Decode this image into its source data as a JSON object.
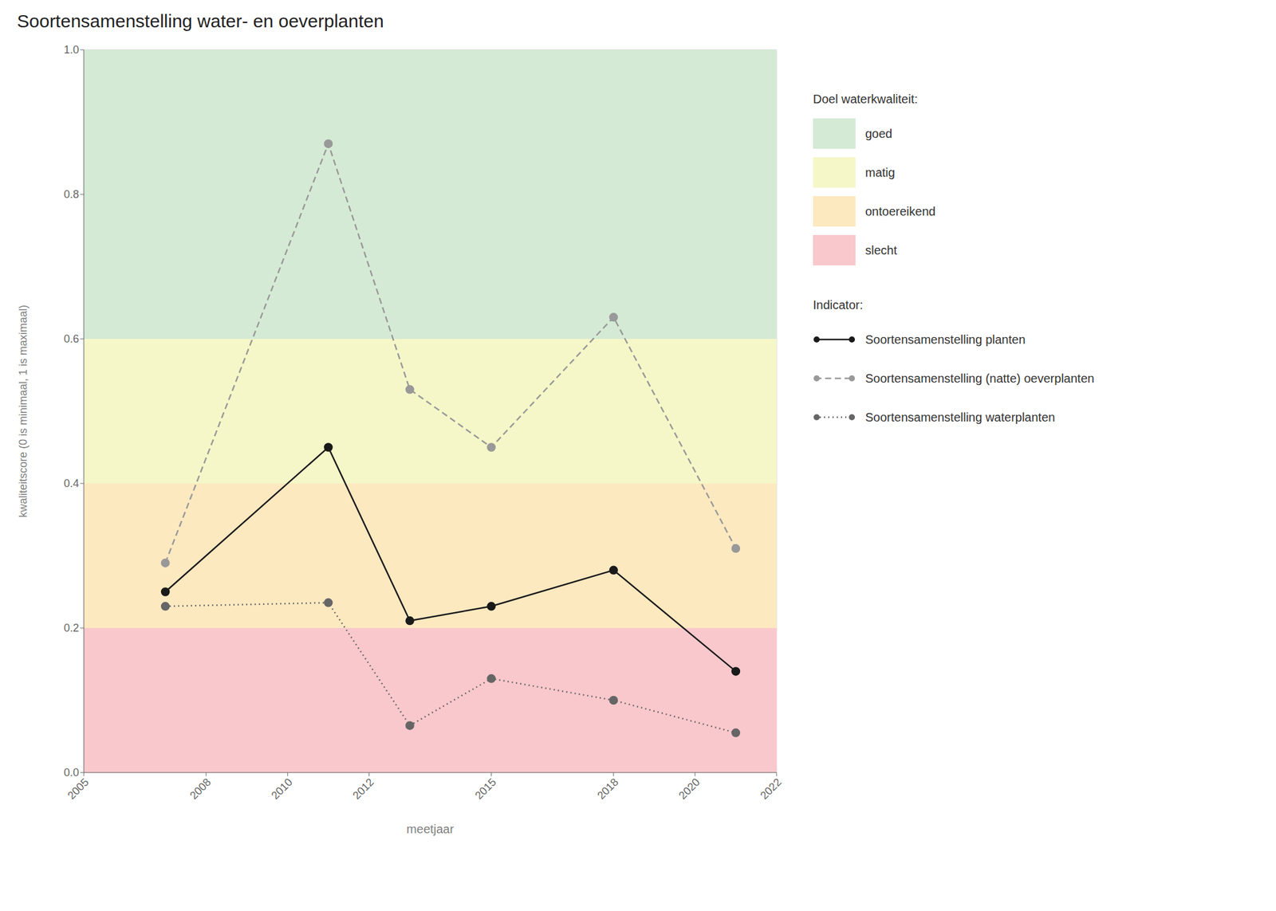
{
  "chart_data": {
    "type": "line",
    "title": "Soortensamenstelling water- en oeverplanten",
    "x_label": "meetjaar",
    "y_label": "kwaliteitscore (0 is minimaal, 1 is maximaal)",
    "xlim": [
      2005,
      2022
    ],
    "ylim": [
      0.0,
      1.0
    ],
    "xticks": [
      2005,
      2008,
      2010,
      2012,
      2015,
      2018,
      2020,
      2022
    ],
    "yticks": [
      {
        "value": 0.0,
        "label": "0.0"
      },
      0.2,
      0.4,
      0.6,
      0.8,
      {
        "value": 1.0,
        "label": "1.0"
      }
    ],
    "grid": true,
    "legend": "right",
    "x": [
      2007,
      2011,
      2013,
      2015,
      2018,
      2021
    ],
    "series": [
      {
        "name": "Soortensamenstelling planten",
        "color": "#1a1a1a",
        "line_style": "solid",
        "marker": "circle",
        "values": [
          0.25,
          0.45,
          0.21,
          0.23,
          0.28,
          0.14
        ]
      },
      {
        "name": "Soortensamenstelling (natte) oeverplanten",
        "color": "#999999",
        "line_style": "dashed",
        "marker": "circle",
        "values": [
          0.29,
          0.87,
          0.53,
          0.45,
          0.63,
          0.31
        ]
      },
      {
        "name": "Soortensamenstelling waterplanten",
        "color": "#666666",
        "line_style": "dotted",
        "marker": "circle",
        "values": [
          0.23,
          0.235,
          0.065,
          0.13,
          0.1,
          0.055
        ]
      }
    ],
    "band_legend_title": "Doel waterkwaliteit:",
    "series_legend_title": "Indicator:",
    "bands": [
      {
        "label": "goed",
        "color": "#d5ead4",
        "ymin": 0.6,
        "ymax": 1.0
      },
      {
        "label": "matig",
        "color": "#f5f7c8",
        "ymin": 0.4,
        "ymax": 0.6
      },
      {
        "label": "ontoereikend",
        "color": "#fce9c0",
        "ymin": 0.2,
        "ymax": 0.4
      },
      {
        "label": "slecht",
        "color": "#f9c8cc",
        "ymin": 0.0,
        "ymax": 0.2
      }
    ]
  }
}
